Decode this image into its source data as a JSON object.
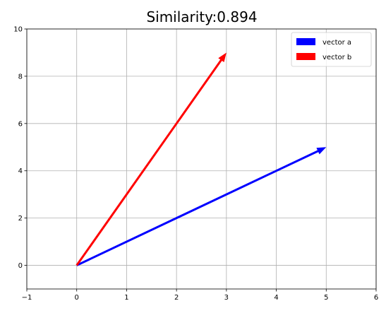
{
  "chart_data": {
    "type": "vector",
    "title": "Similarity:0.894",
    "xlabel": "",
    "ylabel": "",
    "xlim": [
      -1,
      6
    ],
    "ylim": [
      -1,
      10
    ],
    "xticks": [
      -1,
      0,
      1,
      2,
      3,
      4,
      5,
      6
    ],
    "yticks": [
      0,
      2,
      4,
      6,
      8,
      10
    ],
    "grid": true,
    "legend_position": "top-right",
    "series": [
      {
        "name": "vector a",
        "color": "#0000ff",
        "origin": [
          0,
          0
        ],
        "vector": [
          5,
          5
        ]
      },
      {
        "name": "vector b",
        "color": "#ff0000",
        "origin": [
          0,
          0
        ],
        "vector": [
          3,
          9
        ]
      }
    ]
  }
}
